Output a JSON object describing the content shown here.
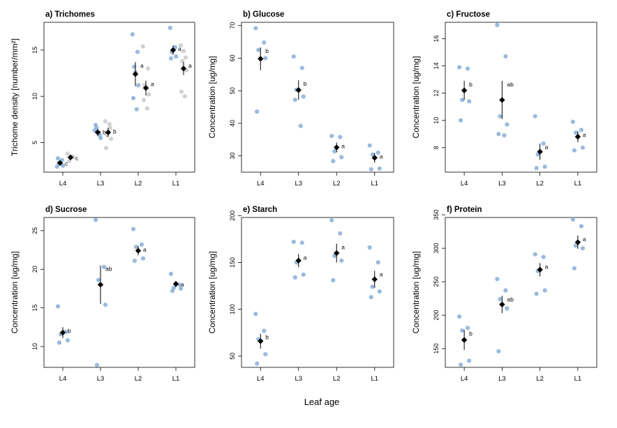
{
  "figure": {
    "xlabel": "Leaf age",
    "colors": {
      "points_primary": "#8fb3d9",
      "points_secondary": "#cccccc",
      "mean": "#000000"
    }
  },
  "chart_data": [
    {
      "type": "scatter",
      "title": "a) Trichomes",
      "ylabel": "Trichome density [number/mm²]",
      "categories": [
        "L4",
        "L3",
        "L2",
        "L1"
      ],
      "ylim": [
        1.8,
        18.0
      ],
      "yticks": [
        5,
        10,
        15
      ],
      "series": [
        {
          "color": "#8fb3d9",
          "points": [
            [
              2.4,
              3.1,
              2.8,
              2.5,
              3.3
            ],
            [
              6.3,
              5.8,
              6.6,
              5.5,
              6.9,
              6.1
            ],
            [
              16.7,
              14.8,
              13.2,
              11.2,
              9.8,
              8.6,
              12.6
            ],
            [
              17.4,
              15.3,
              14.8,
              14.3,
              14.1
            ]
          ],
          "mean": [
            2.8,
            6.1,
            12.4,
            15.0
          ],
          "err": [
            0.3,
            0.4,
            1.3,
            0.5
          ],
          "letters": [
            "c",
            "b",
            "a",
            "a"
          ]
        },
        {
          "color": "#cccccc",
          "points": [
            [
              3.8,
              3.5,
              3.0,
              3.4
            ],
            [
              7.3,
              6.6,
              5.8,
              5.4,
              4.4,
              7.0
            ],
            [
              15.4,
              13.0,
              11.2,
              10.2,
              9.6,
              8.7
            ],
            [
              15.5,
              14.2,
              13.8,
              12.8,
              10.5,
              10.0,
              14.9
            ]
          ],
          "mean": [
            3.4,
            6.1,
            10.9,
            13.0
          ],
          "err": [
            0.3,
            0.5,
            0.8,
            0.7
          ],
          "letters": [
            "c",
            "b",
            "a",
            "a"
          ]
        }
      ]
    },
    {
      "type": "scatter",
      "title": "b) Glucose",
      "ylabel": "Concentration [ug/mg]",
      "categories": [
        "L4",
        "L3",
        "L2",
        "L1"
      ],
      "ylim": [
        25,
        71
      ],
      "yticks": [
        30,
        40,
        50,
        60,
        70
      ],
      "series": [
        {
          "color": "#8fb3d9",
          "points": [
            [
              69.2,
              64.8,
              62.5,
              60.0,
              43.6
            ],
            [
              60.5,
              57.0,
              50.3,
              48.2,
              47.2,
              39.2
            ],
            [
              36.1,
              35.8,
              31.4,
              29.6,
              28.4
            ],
            [
              33.2,
              31.0,
              30.4,
              26.1,
              25.9
            ]
          ],
          "mean": [
            59.8,
            50.2,
            32.6,
            29.4
          ],
          "err": [
            3.5,
            3.0,
            1.5,
            1.5
          ],
          "letters": [
            "b",
            "b",
            "a",
            "a"
          ]
        }
      ]
    },
    {
      "type": "scatter",
      "title": "c) Fructose",
      "ylabel": "Concentration [ug/mg]",
      "categories": [
        "L4",
        "L3",
        "L2",
        "L1"
      ],
      "ylim": [
        6.2,
        17.2
      ],
      "yticks": [
        8,
        10,
        12,
        14,
        16
      ],
      "series": [
        {
          "color": "#8fb3d9",
          "points": [
            [
              13.9,
              13.8,
              11.5,
              11.4,
              10.0
            ],
            [
              17.0,
              14.7,
              10.3,
              9.7,
              9.0,
              8.9
            ],
            [
              10.3,
              8.3,
              7.5,
              6.6,
              6.5
            ],
            [
              9.9,
              9.3,
              9.1,
              8.0,
              7.8
            ]
          ],
          "mean": [
            12.2,
            11.5,
            7.7,
            8.8
          ],
          "err": [
            0.7,
            1.4,
            0.6,
            0.4
          ],
          "letters": [
            "b",
            "ab",
            "a",
            "a"
          ]
        }
      ]
    },
    {
      "type": "scatter",
      "title": "d) Sucrose",
      "ylabel": "Concentration [ug/mg]",
      "categories": [
        "L4",
        "L3",
        "L2",
        "L1"
      ],
      "ylim": [
        7.3,
        26.7
      ],
      "yticks": [
        10,
        15,
        20,
        25
      ],
      "series": [
        {
          "color": "#8fb3d9",
          "points": [
            [
              15.2,
              11.9,
              11.6,
              10.8,
              10.5
            ],
            [
              26.4,
              20.3,
              18.6,
              15.4,
              7.6
            ],
            [
              25.2,
              23.2,
              22.9,
              21.4,
              21.1
            ],
            [
              19.4,
              18.0,
              17.6,
              17.5,
              17.2
            ]
          ],
          "mean": [
            11.8,
            18.0,
            22.4,
            18.1
          ],
          "err": [
            0.7,
            2.5,
            0.6,
            0.4
          ],
          "letters": [
            "b",
            "ab",
            "a",
            "a"
          ]
        }
      ]
    },
    {
      "type": "scatter",
      "title": "e) Starch",
      "ylabel": "Concentration [ug/mg]",
      "categories": [
        "L4",
        "L3",
        "L2",
        "L1"
      ],
      "ylim": [
        38,
        198
      ],
      "yticks": [
        50,
        100,
        150,
        200
      ],
      "series": [
        {
          "color": "#8fb3d9",
          "points": [
            [
              95.0,
              77.0,
              68.0,
              52.0,
              42.0
            ],
            [
              172.0,
              171.0,
              150.0,
              137.0,
              134.0
            ],
            [
              195.0,
              181.0,
              157.0,
              152.0,
              131.0
            ],
            [
              166.0,
              150.0,
              124.0,
              119.0,
              113.0
            ]
          ],
          "mean": [
            66.0,
            152.0,
            160.0,
            132.0
          ],
          "err": [
            8.0,
            7.0,
            10.0,
            9.0
          ],
          "letters": [
            "b",
            "a",
            "a",
            "a"
          ]
        }
      ]
    },
    {
      "type": "scatter",
      "title": "f) Protein",
      "ylabel": "Concentration [ug/mg]",
      "categories": [
        "L4",
        "L3",
        "L2",
        "L1"
      ],
      "ylim": [
        122,
        346
      ],
      "yticks": [
        150,
        200,
        250,
        300,
        350
      ],
      "series": [
        {
          "color": "#8fb3d9",
          "points": [
            [
              198.0,
              181.0,
              177.0,
              132.0,
              126.0
            ],
            [
              254.0,
              237.0,
              224.0,
              210.0,
              146.0
            ],
            [
              291.0,
              287.0,
              266.0,
              237.0,
              232.0
            ],
            [
              343.0,
              333.0,
              304.0,
              300.0,
              270.0
            ]
          ],
          "mean": [
            163.0,
            216.0,
            268.0,
            309.0
          ],
          "err": [
            15.0,
            13.0,
            10.0,
            10.0
          ],
          "letters": [
            "b",
            "ab",
            "a",
            "a"
          ]
        }
      ]
    }
  ]
}
